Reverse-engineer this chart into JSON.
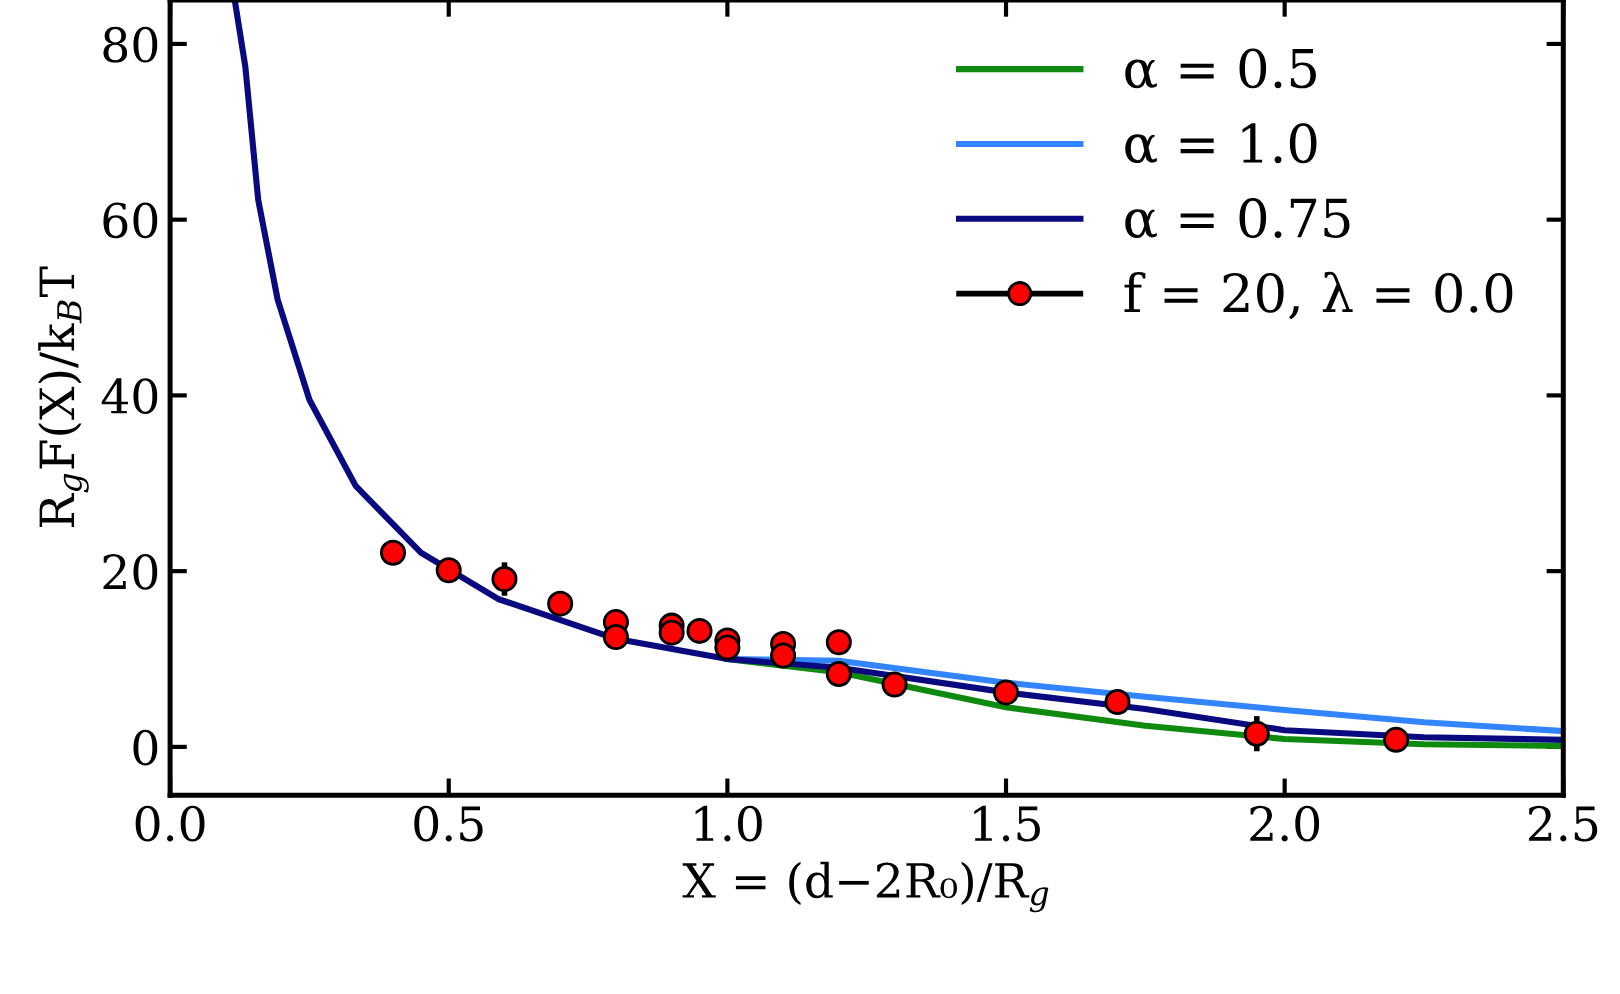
{
  "chart_data": {
    "type": "line",
    "xlabel": "X = (d−2R₀)/R$_{g}$",
    "ylabel": "R$_{g}$F(X)/k$_{B}$T",
    "xlim": [
      0,
      2.5
    ],
    "ylim": [
      -5.5,
      85
    ],
    "xticks": [
      {
        "value": 0,
        "label": "0.0"
      },
      {
        "value": 0.5,
        "label": "0.5"
      },
      {
        "value": 1,
        "label": "1.0"
      },
      {
        "value": 1.5,
        "label": "1.5"
      },
      {
        "value": 2,
        "label": "2.0"
      },
      {
        "value": 2.5,
        "label": "2.5"
      }
    ],
    "yticks": [
      0,
      20,
      40,
      60,
      80
    ],
    "grid": false,
    "legend": "top right",
    "series": [
      {
        "name": "α = 0.5",
        "color": "#0f8a0f",
        "x": [
          1.0,
          1.2,
          1.5,
          1.75,
          2.0,
          2.25,
          2.5
        ],
        "values": [
          10.0,
          8.5,
          4.5,
          2.4,
          0.9,
          0.3,
          0.1
        ]
      },
      {
        "name": "α = 1.0",
        "color": "#3385ff",
        "x": [
          1.0,
          1.2,
          1.5,
          1.75,
          2.0,
          2.25,
          2.5
        ],
        "values": [
          10.0,
          9.8,
          7.3,
          5.7,
          4.2,
          2.8,
          1.8
        ]
      },
      {
        "name": "α = 0.75",
        "color": "#0a0a80",
        "x": [
          0.116,
          0.135,
          0.158,
          0.193,
          0.25,
          0.333,
          0.45,
          0.59,
          0.8,
          1.0,
          1.2,
          1.5,
          1.75,
          2.0,
          2.25,
          2.5
        ],
        "values": [
          85,
          77.4,
          62.3,
          50.9,
          39.5,
          29.7,
          22.1,
          16.8,
          12.3,
          10.0,
          9.0,
          6.2,
          4.3,
          1.9,
          1.1,
          0.8
        ]
      },
      {
        "name": "f = 20, λ = 0.0",
        "color": "#ff0000",
        "type": "scatter",
        "marker": "circle",
        "x": [
          0.4,
          0.5,
          0.6,
          0.7,
          0.8,
          0.8,
          0.9,
          0.9,
          0.95,
          1.0,
          1.0,
          1.1,
          1.1,
          1.2,
          1.2,
          1.3,
          1.5,
          1.7,
          1.95,
          2.2
        ],
        "values": [
          22.1,
          20.1,
          19.1,
          16.3,
          14.2,
          12.5,
          13.8,
          13.0,
          13.2,
          12.1,
          11.3,
          11.7,
          10.4,
          11.9,
          8.3,
          7.1,
          6.2,
          5.1,
          1.5,
          0.8
        ],
        "errors": [
          null,
          null,
          1.9,
          null,
          null,
          null,
          null,
          null,
          null,
          null,
          null,
          null,
          null,
          null,
          null,
          null,
          null,
          null,
          2,
          null
        ]
      }
    ]
  }
}
